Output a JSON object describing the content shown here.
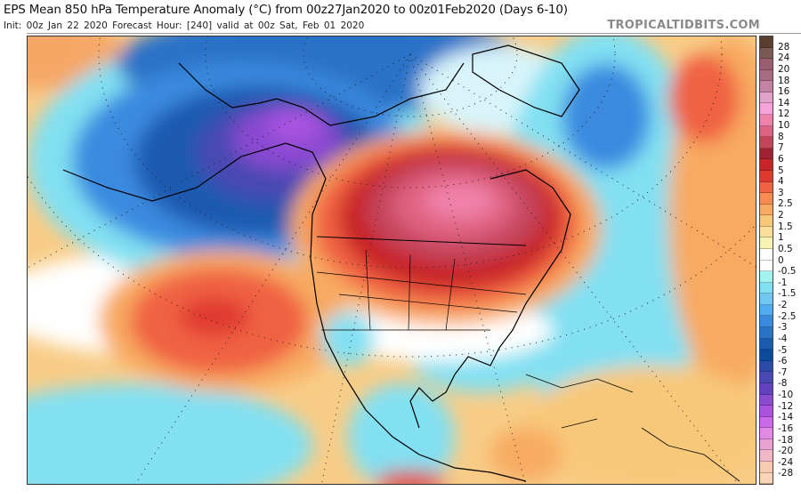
{
  "header": {
    "title": "EPS Mean 850 hPa Temperature Anomaly (°C) from 00z27Jan2020 to 00z01Feb2020 (Days 6-10)",
    "subtitle": "Init: 00z Jan 22 2020   Forecast Hour: [240]   valid at 00z Sat, Feb 01 2020",
    "brand": "TROPICALTIDBITS.COM"
  },
  "colorbar": {
    "labels": [
      "28",
      "24",
      "20",
      "18",
      "16",
      "14",
      "12",
      "10",
      "8",
      "7",
      "6",
      "5",
      "4",
      "3",
      "2.5",
      "2",
      "1.5",
      "1",
      "0.5",
      "0",
      "-0.5",
      "-1",
      "-1.5",
      "-2",
      "-2.5",
      "-3",
      "-4",
      "-5",
      "-6",
      "-7",
      "-8",
      "-10",
      "-12",
      "-14",
      "-16",
      "-18",
      "-20",
      "-24",
      "-28"
    ],
    "colors": [
      "#5a3e2e",
      "#7a5a52",
      "#98606e",
      "#a86c80",
      "#c282a2",
      "#e0a2c8",
      "#f8a2dc",
      "#f082aa",
      "#e06282",
      "#c4445a",
      "#a02232",
      "#c82428",
      "#e03a30",
      "#f06242",
      "#f88a52",
      "#f8aa62",
      "#f8c87a",
      "#f8e09a",
      "#f8f2b4",
      "#ffffff",
      "#ffffff",
      "#a2f2f2",
      "#82e0f2",
      "#70c8f2",
      "#52aaf0",
      "#3a8ae0",
      "#2a72c8",
      "#1a5ab0",
      "#0a4a98",
      "#2a4aa8",
      "#4a48b2",
      "#6242c2",
      "#8a4ad2",
      "#aa52e2",
      "#ca6ae8",
      "#e28ae2",
      "#eaa2d2",
      "#f2b8c8",
      "#f8cab2",
      "#fad4b8"
    ]
  }
}
